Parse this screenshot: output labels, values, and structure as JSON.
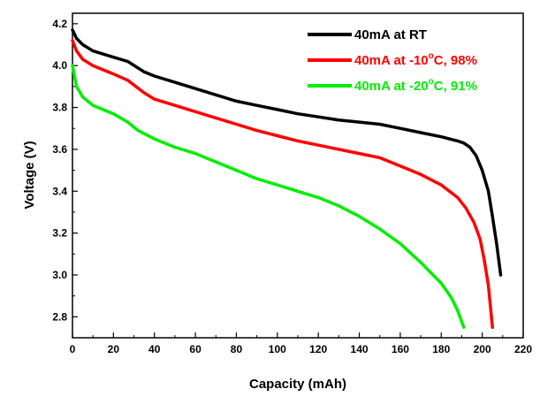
{
  "chart_data": {
    "type": "line",
    "xlabel": "Capacity (mAh)",
    "ylabel": "Voltage (V)",
    "xlim": [
      0,
      220
    ],
    "ylim": [
      2.7,
      4.25
    ],
    "x_ticks": [
      0,
      20,
      40,
      60,
      80,
      100,
      120,
      140,
      160,
      180,
      200,
      220
    ],
    "y_ticks": [
      2.8,
      3.0,
      3.2,
      3.4,
      3.6,
      3.8,
      4.0,
      4.2
    ],
    "legend_position": "top-right",
    "grid": false,
    "series": [
      {
        "name": "40mA at RT",
        "legend_main": "40mA at RT",
        "legend_sup": "",
        "legend_tail": "",
        "color": "#000000",
        "points": [
          [
            0,
            4.17
          ],
          [
            2,
            4.13
          ],
          [
            5,
            4.1
          ],
          [
            10,
            4.07
          ],
          [
            20,
            4.04
          ],
          [
            27,
            4.02
          ],
          [
            35,
            3.97
          ],
          [
            40,
            3.95
          ],
          [
            50,
            3.92
          ],
          [
            60,
            3.89
          ],
          [
            70,
            3.86
          ],
          [
            80,
            3.83
          ],
          [
            90,
            3.81
          ],
          [
            100,
            3.79
          ],
          [
            110,
            3.77
          ],
          [
            120,
            3.755
          ],
          [
            130,
            3.74
          ],
          [
            140,
            3.73
          ],
          [
            150,
            3.72
          ],
          [
            160,
            3.7
          ],
          [
            170,
            3.68
          ],
          [
            180,
            3.66
          ],
          [
            188,
            3.64
          ],
          [
            191,
            3.63
          ],
          [
            194,
            3.61
          ],
          [
            197,
            3.57
          ],
          [
            200,
            3.5
          ],
          [
            203,
            3.4
          ],
          [
            205,
            3.28
          ],
          [
            207,
            3.15
          ],
          [
            209,
            3.0
          ]
        ]
      },
      {
        "name": "40mA at -10°C, 98%",
        "legend_main": "40mA at -10",
        "legend_sup": "o",
        "legend_tail": "C, 98%",
        "color": "#ff0000",
        "points": [
          [
            0,
            4.12
          ],
          [
            2,
            4.07
          ],
          [
            5,
            4.03
          ],
          [
            10,
            4.0
          ],
          [
            20,
            3.96
          ],
          [
            27,
            3.93
          ],
          [
            35,
            3.87
          ],
          [
            40,
            3.84
          ],
          [
            50,
            3.81
          ],
          [
            60,
            3.78
          ],
          [
            70,
            3.75
          ],
          [
            80,
            3.72
          ],
          [
            90,
            3.69
          ],
          [
            100,
            3.665
          ],
          [
            110,
            3.64
          ],
          [
            120,
            3.62
          ],
          [
            130,
            3.6
          ],
          [
            140,
            3.58
          ],
          [
            150,
            3.56
          ],
          [
            160,
            3.52
          ],
          [
            170,
            3.48
          ],
          [
            180,
            3.43
          ],
          [
            188,
            3.37
          ],
          [
            192,
            3.32
          ],
          [
            196,
            3.25
          ],
          [
            199,
            3.17
          ],
          [
            201,
            3.07
          ],
          [
            203,
            2.95
          ],
          [
            204,
            2.85
          ],
          [
            205,
            2.75
          ]
        ]
      },
      {
        "name": "40mA at -20°C, 91%",
        "legend_main": "40mA at -20",
        "legend_sup": "o",
        "legend_tail": "C, 91%",
        "color": "#00ee00",
        "points": [
          [
            0,
            4.0
          ],
          [
            2,
            3.9
          ],
          [
            5,
            3.85
          ],
          [
            10,
            3.81
          ],
          [
            20,
            3.77
          ],
          [
            27,
            3.73
          ],
          [
            32,
            3.69
          ],
          [
            40,
            3.65
          ],
          [
            50,
            3.61
          ],
          [
            60,
            3.58
          ],
          [
            70,
            3.54
          ],
          [
            80,
            3.5
          ],
          [
            90,
            3.46
          ],
          [
            100,
            3.43
          ],
          [
            110,
            3.4
          ],
          [
            120,
            3.37
          ],
          [
            130,
            3.33
          ],
          [
            140,
            3.28
          ],
          [
            150,
            3.22
          ],
          [
            160,
            3.15
          ],
          [
            170,
            3.06
          ],
          [
            175,
            3.01
          ],
          [
            180,
            2.96
          ],
          [
            185,
            2.89
          ],
          [
            188,
            2.83
          ],
          [
            191,
            2.75
          ]
        ]
      }
    ]
  }
}
